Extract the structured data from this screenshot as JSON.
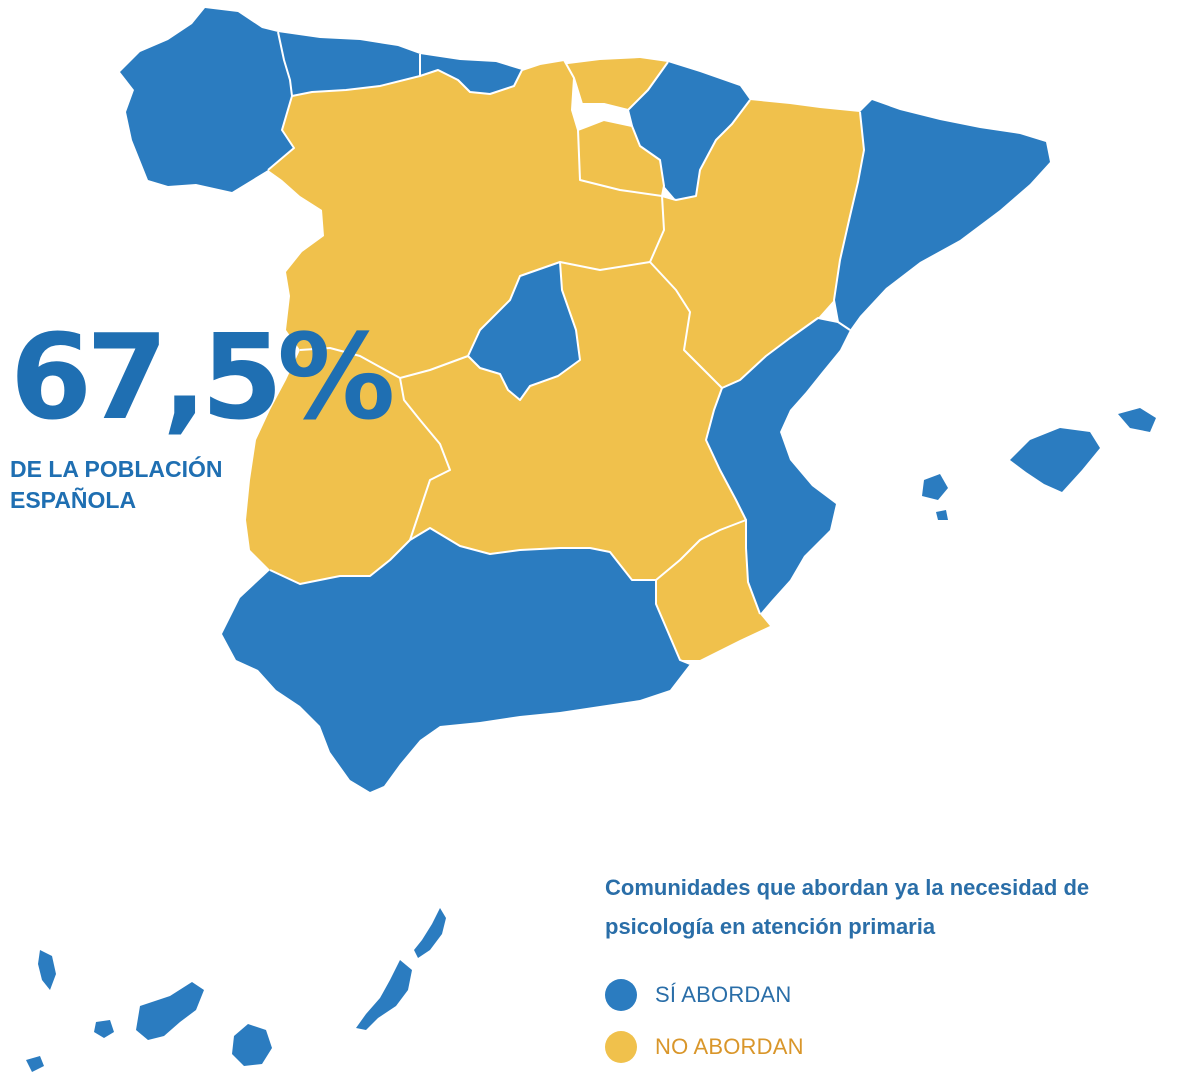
{
  "stat": {
    "value": "67,5%",
    "caption": "DE LA POBLACIÓN ESPAÑOLA"
  },
  "legend": {
    "title": "Comunidades que abordan ya la necesidad de psicología en atención primaria",
    "items": [
      {
        "label": "SÍ ABORDAN",
        "color": "#2b7cc0",
        "label_color": "#2a6ea8"
      },
      {
        "label": "NO ABORDAN",
        "color": "#f0c14c",
        "label_color": "#d9962a"
      }
    ]
  },
  "regions": [
    {
      "name": "Galicia",
      "status": "yes"
    },
    {
      "name": "Asturias",
      "status": "yes"
    },
    {
      "name": "Cantabria",
      "status": "yes"
    },
    {
      "name": "País Vasco",
      "status": "no"
    },
    {
      "name": "Navarra",
      "status": "yes"
    },
    {
      "name": "La Rioja",
      "status": "no"
    },
    {
      "name": "Castilla y León",
      "status": "no"
    },
    {
      "name": "Aragón",
      "status": "no"
    },
    {
      "name": "Cataluña",
      "status": "yes"
    },
    {
      "name": "Madrid",
      "status": "yes"
    },
    {
      "name": "Castilla-La Mancha",
      "status": "no"
    },
    {
      "name": "Extremadura",
      "status": "no"
    },
    {
      "name": "Comunidad Valenciana",
      "status": "yes"
    },
    {
      "name": "Murcia",
      "status": "no"
    },
    {
      "name": "Andalucía",
      "status": "yes"
    },
    {
      "name": "Islas Baleares",
      "status": "yes"
    },
    {
      "name": "Canarias",
      "status": "yes"
    }
  ]
}
